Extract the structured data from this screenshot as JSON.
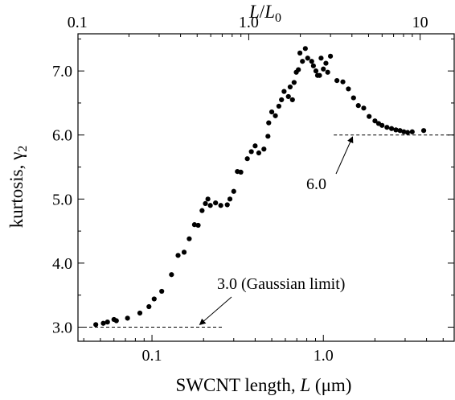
{
  "chart_data": {
    "type": "scatter",
    "xlabel": {
      "prefix": "SWCNT length, ",
      "var": "L",
      "unit": " (μm)"
    },
    "ylabel": {
      "prefix": "kurtosis, γ",
      "sub": "2"
    },
    "top_axis_label": {
      "var1": "L",
      "slash": "/",
      "var2": "L",
      "sub": "0"
    },
    "x_scale": "log",
    "xlim": [
      0.037,
      5.8
    ],
    "ylim": [
      2.78,
      7.58
    ],
    "x_ticks": [
      {
        "value": 0.1,
        "label": "0.1"
      },
      {
        "value": 1.0,
        "label": "1.0"
      }
    ],
    "y_ticks": [
      {
        "value": 3.0,
        "label": "3.0"
      },
      {
        "value": 4.0,
        "label": "4.0"
      },
      {
        "value": 5.0,
        "label": "5.0"
      },
      {
        "value": 6.0,
        "label": "6.0"
      },
      {
        "value": 7.0,
        "label": "7.0"
      }
    ],
    "top_ticks": [
      {
        "value": 0.1,
        "label": "0.1"
      },
      {
        "value": 1.0,
        "label": "1.0"
      },
      {
        "value": 10,
        "label": "10"
      }
    ],
    "L0_um": 0.367,
    "series": [
      {
        "marker": "dot",
        "color": "#000000",
        "points": [
          [
            0.047,
            3.04
          ],
          [
            0.052,
            3.06
          ],
          [
            0.055,
            3.08
          ],
          [
            0.06,
            3.12
          ],
          [
            0.062,
            3.1
          ],
          [
            0.072,
            3.14
          ],
          [
            0.085,
            3.22
          ],
          [
            0.096,
            3.32
          ],
          [
            0.103,
            3.44
          ],
          [
            0.114,
            3.56
          ],
          [
            0.13,
            3.82
          ],
          [
            0.142,
            4.12
          ],
          [
            0.154,
            4.17
          ],
          [
            0.165,
            4.38
          ],
          [
            0.177,
            4.6
          ],
          [
            0.186,
            4.59
          ],
          [
            0.196,
            4.82
          ],
          [
            0.205,
            4.93
          ],
          [
            0.212,
            5.0
          ],
          [
            0.219,
            4.9
          ],
          [
            0.235,
            4.94
          ],
          [
            0.252,
            4.9
          ],
          [
            0.275,
            4.91
          ],
          [
            0.285,
            5.0
          ],
          [
            0.3,
            5.12
          ],
          [
            0.315,
            5.43
          ],
          [
            0.33,
            5.42
          ],
          [
            0.36,
            5.63
          ],
          [
            0.38,
            5.74
          ],
          [
            0.4,
            5.83
          ],
          [
            0.42,
            5.72
          ],
          [
            0.45,
            5.78
          ],
          [
            0.475,
            5.98
          ],
          [
            0.48,
            6.19
          ],
          [
            0.5,
            6.36
          ],
          [
            0.525,
            6.3
          ],
          [
            0.55,
            6.45
          ],
          [
            0.57,
            6.55
          ],
          [
            0.59,
            6.68
          ],
          [
            0.625,
            6.6
          ],
          [
            0.66,
            6.55
          ],
          [
            0.64,
            6.75
          ],
          [
            0.675,
            6.82
          ],
          [
            0.695,
            6.98
          ],
          [
            0.715,
            7.02
          ],
          [
            0.73,
            7.28
          ],
          [
            0.755,
            7.15
          ],
          [
            0.785,
            7.35
          ],
          [
            0.81,
            7.2
          ],
          [
            0.855,
            7.15
          ],
          [
            0.875,
            7.08
          ],
          [
            0.905,
            7.0
          ],
          [
            0.925,
            6.93
          ],
          [
            0.95,
            6.93
          ],
          [
            0.97,
            7.2
          ],
          [
            1.0,
            7.03
          ],
          [
            1.035,
            7.12
          ],
          [
            1.06,
            6.98
          ],
          [
            1.1,
            7.23
          ],
          [
            1.2,
            6.85
          ],
          [
            1.3,
            6.83
          ],
          [
            1.4,
            6.72
          ],
          [
            1.5,
            6.58
          ],
          [
            1.6,
            6.46
          ],
          [
            1.72,
            6.42
          ],
          [
            1.85,
            6.29
          ],
          [
            2.0,
            6.22
          ],
          [
            2.1,
            6.18
          ],
          [
            2.2,
            6.15
          ],
          [
            2.35,
            6.12
          ],
          [
            2.5,
            6.1
          ],
          [
            2.65,
            6.08
          ],
          [
            2.8,
            6.07
          ],
          [
            2.95,
            6.05
          ],
          [
            3.1,
            6.04
          ],
          [
            3.3,
            6.05
          ],
          [
            3.85,
            6.07
          ]
        ]
      }
    ],
    "reference_lines": [
      {
        "y": 3.0,
        "x_from": 0.037,
        "x_to": 0.26
      },
      {
        "y": 6.0,
        "x_from": 1.15,
        "x_to": 5.8
      }
    ],
    "annotations": [
      {
        "text": "3.0 (Gaussian limit)",
        "arrow_to": [
          0.19,
          3.04
        ]
      },
      {
        "text": "6.0",
        "arrow_to": [
          1.48,
          5.97
        ]
      }
    ]
  }
}
